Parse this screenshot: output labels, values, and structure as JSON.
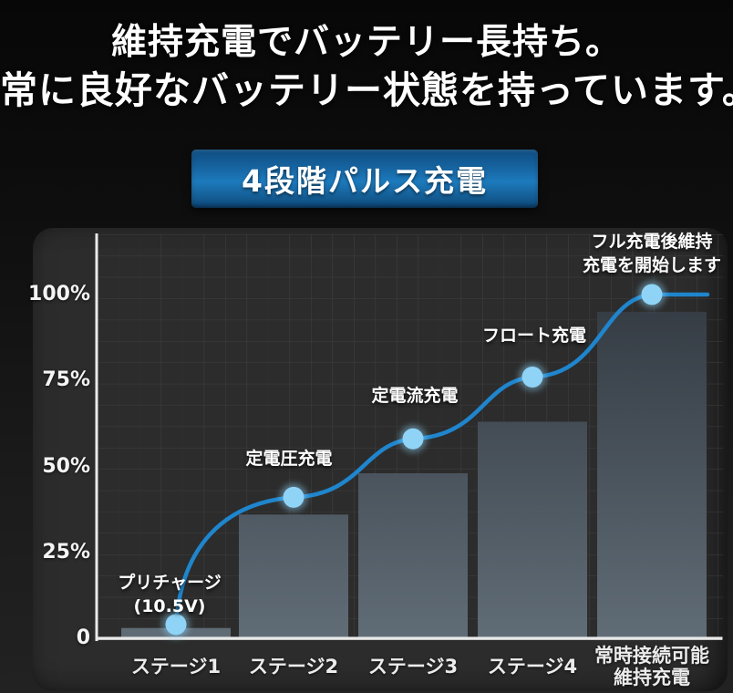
{
  "header": {
    "title_line1": "維持充電でバッテリー長持ち。",
    "title_line2": "常に良好なバッテリー状態を持っています。"
  },
  "badge": {
    "label": "4段階パルス充電",
    "color_top": "#0d4c80",
    "color_mid": "#1d7abc",
    "color_bottom": "#0c4474"
  },
  "chart_data": {
    "type": "bar+line",
    "title": "4段階パルス充電",
    "categories": [
      {
        "lines": [
          "ステージ1"
        ]
      },
      {
        "lines": [
          "ステージ2"
        ]
      },
      {
        "lines": [
          "ステージ3"
        ]
      },
      {
        "lines": [
          "ステージ4"
        ]
      },
      {
        "lines": [
          "常時接続可能",
          "維持充電"
        ]
      }
    ],
    "series": [
      {
        "name": "charge-level-bars",
        "type": "bar",
        "values": [
          3,
          36,
          48,
          63,
          95
        ]
      },
      {
        "name": "charge-curve",
        "type": "line",
        "values": [
          4,
          41,
          58,
          76,
          100
        ]
      }
    ],
    "point_annotations": [
      {
        "lines": [
          "プリチャージ",
          "(10.5V)"
        ]
      },
      {
        "lines": [
          "定電圧充電"
        ]
      },
      {
        "lines": [
          "定電流充電"
        ]
      },
      {
        "lines": [
          "フロート充電"
        ]
      },
      {
        "lines": [
          "フル充電後維持",
          "充電を開始します"
        ]
      }
    ],
    "yticks": [
      {
        "label": "100%",
        "value": 100
      },
      {
        "label": "75%",
        "value": 75
      },
      {
        "label": "50%",
        "value": 50
      },
      {
        "label": "25%",
        "value": 25
      },
      {
        "label": "0",
        "value": 0
      }
    ],
    "ylim": [
      0,
      117
    ],
    "grid": true,
    "legend": "none",
    "colors": {
      "line": "#1f85cd",
      "dot": "#8fd4f7",
      "bar_top": "#333a42",
      "bar_bottom": "#606c76",
      "axis": "#e9e9e9",
      "grid_line": "#3e3e3e",
      "panel_bg": "#2c2c2c",
      "text": "#f2f2f2"
    }
  }
}
